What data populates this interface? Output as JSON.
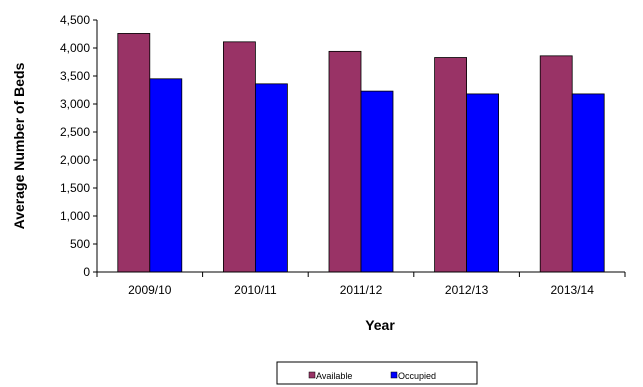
{
  "chart_data": {
    "type": "bar",
    "title": "",
    "xlabel": "Year",
    "ylabel": "Average Number of Beds",
    "categories": [
      "2009/10",
      "2010/11",
      "2011/12",
      "2012/13",
      "2013/14"
    ],
    "series": [
      {
        "name": "Available",
        "color": "#993366",
        "values": [
          4260,
          4110,
          3940,
          3830,
          3860
        ]
      },
      {
        "name": "Occupied",
        "color": "#0000FF",
        "values": [
          3450,
          3360,
          3230,
          3180,
          3180
        ]
      }
    ],
    "ylim": [
      0,
      4500
    ],
    "yticks": [
      0,
      500,
      1000,
      1500,
      2000,
      2500,
      3000,
      3500,
      4000,
      4500
    ],
    "ytick_labels": [
      "0",
      "500",
      "1,000",
      "1,500",
      "2,000",
      "2,500",
      "3,000",
      "3,500",
      "4,000",
      "4,500"
    ],
    "grid": false,
    "legend_position": "bottom"
  }
}
